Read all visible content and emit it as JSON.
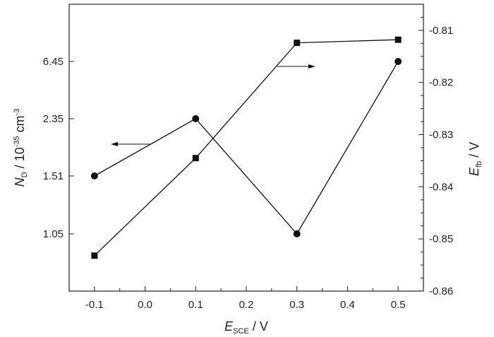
{
  "chart_data": {
    "type": "line",
    "title": "",
    "x": [
      -0.1,
      0.1,
      0.3,
      0.5
    ],
    "xlim": [
      -0.15,
      0.55
    ],
    "xticks": [
      "-0.1",
      "0.0",
      "0.1",
      "0.2",
      "0.3",
      "0.4",
      "0.5"
    ],
    "xlabel": {
      "symbol": "E",
      "sub": "SCE",
      "unit": " / V"
    },
    "ylabel_left": {
      "symbol": "N",
      "sub": "D",
      "unit_a": " / 10",
      "sup1": "-35",
      "unit_b": " cm",
      "sup2": "-3"
    },
    "ylabel_right": {
      "symbol": "E",
      "sub": "fb",
      "unit": " / V"
    },
    "left_axis_ticks": [
      "1.05",
      "1.51",
      "2.35",
      "6.45"
    ],
    "right_axis": {
      "ylim": [
        -0.86,
        -0.805
      ],
      "ticks": [
        "-0.86",
        "-0.85",
        "-0.84",
        "-0.83",
        "-0.82",
        "-0.81"
      ]
    },
    "series": [
      {
        "marker": "circle",
        "axis": "left",
        "values": [
          1.51,
          2.35,
          1.05,
          6.45
        ]
      },
      {
        "marker": "square",
        "axis": "right",
        "values": [
          -0.8532,
          -0.8345,
          -0.8124,
          -0.8118
        ]
      }
    ],
    "arrows": [
      {
        "direction": "left",
        "points_to": "left axis"
      },
      {
        "direction": "right",
        "points_to": "right axis"
      }
    ],
    "grid": false,
    "legend": "none"
  }
}
